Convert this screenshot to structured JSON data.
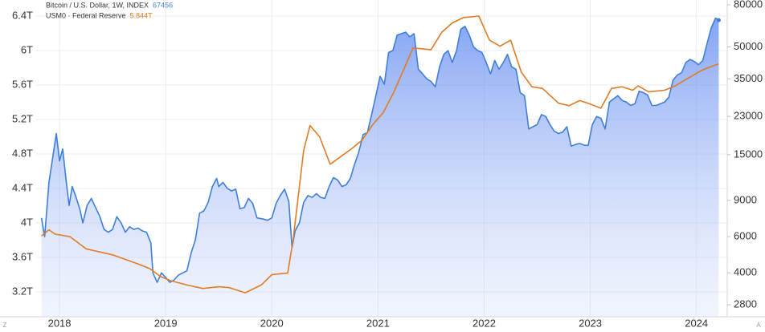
{
  "chart_data": {
    "type": "line",
    "xlim": [
      2017.78,
      2024.29
    ],
    "xticks": [
      2018,
      2019,
      2020,
      2021,
      2022,
      2023,
      2024
    ],
    "ylim": [
      2.912,
      6.586
    ],
    "yticks": [
      {
        "value": 3.2,
        "label": "3.2T"
      },
      {
        "value": 3.6,
        "label": "3.6T"
      },
      {
        "value": 4,
        "label": "4T"
      },
      {
        "value": 4.4,
        "label": "4.4T"
      },
      {
        "value": 4.8,
        "label": "4.8T"
      },
      {
        "value": 5.2,
        "label": "5.2T"
      },
      {
        "value": 5.6,
        "label": "5.6T"
      },
      {
        "value": 6,
        "label": "6T"
      },
      {
        "value": 6.4,
        "label": "6.4T"
      }
    ],
    "y2lim": [
      2450,
      84500
    ],
    "y2scale": "log",
    "y2ticks": [
      2800,
      4000,
      6000,
      9000,
      15000,
      23000,
      35000,
      50000,
      80000
    ],
    "grid": true,
    "scale_buttons": [
      "Z",
      "A"
    ],
    "series": [
      {
        "name": "Bitcoin / U.S. Dollar, 1W, INDEX",
        "last_value": 67456,
        "color": "#3f7fd8",
        "area": true,
        "axis": "y2",
        "x": [
          2017.83,
          2017.86,
          2017.9,
          2017.94,
          2017.97,
          2018,
          2018.03,
          2018.06,
          2018.09,
          2018.12,
          2018.15,
          2018.19,
          2018.22,
          2018.26,
          2018.3,
          2018.34,
          2018.38,
          2018.42,
          2018.46,
          2018.5,
          2018.54,
          2018.58,
          2018.62,
          2018.66,
          2018.7,
          2018.74,
          2018.78,
          2018.82,
          2018.86,
          2018.88,
          2018.92,
          2018.96,
          2019,
          2019.04,
          2019.08,
          2019.12,
          2019.16,
          2019.2,
          2019.24,
          2019.28,
          2019.32,
          2019.36,
          2019.4,
          2019.44,
          2019.48,
          2019.5,
          2019.54,
          2019.58,
          2019.62,
          2019.66,
          2019.7,
          2019.74,
          2019.78,
          2019.82,
          2019.86,
          2019.92,
          2019.96,
          2020,
          2020.04,
          2020.08,
          2020.12,
          2020.16,
          2020.19,
          2020.22,
          2020.26,
          2020.3,
          2020.34,
          2020.38,
          2020.42,
          2020.46,
          2020.5,
          2020.54,
          2020.58,
          2020.62,
          2020.66,
          2020.7,
          2020.74,
          2020.78,
          2020.82,
          2020.86,
          2020.9,
          2020.94,
          2020.98,
          2021.02,
          2021.06,
          2021.1,
          2021.14,
          2021.18,
          2021.22,
          2021.26,
          2021.3,
          2021.34,
          2021.38,
          2021.42,
          2021.46,
          2021.5,
          2021.54,
          2021.58,
          2021.62,
          2021.66,
          2021.7,
          2021.74,
          2021.78,
          2021.82,
          2021.86,
          2021.9,
          2021.94,
          2021.98,
          2022.02,
          2022.06,
          2022.1,
          2022.14,
          2022.18,
          2022.22,
          2022.26,
          2022.3,
          2022.34,
          2022.38,
          2022.42,
          2022.46,
          2022.5,
          2022.54,
          2022.58,
          2022.62,
          2022.66,
          2022.7,
          2022.74,
          2022.78,
          2022.82,
          2022.86,
          2022.9,
          2022.94,
          2022.98,
          2023.02,
          2023.06,
          2023.1,
          2023.14,
          2023.18,
          2023.22,
          2023.26,
          2023.3,
          2023.34,
          2023.38,
          2023.42,
          2023.46,
          2023.5,
          2023.54,
          2023.58,
          2023.62,
          2023.66,
          2023.7,
          2023.74,
          2023.78,
          2023.82,
          2023.86,
          2023.9,
          2023.94,
          2023.98,
          2024.02,
          2024.06,
          2024.1,
          2024.14,
          2024.18,
          2024.21
        ],
        "values": [
          7400,
          6000,
          11000,
          15000,
          19000,
          14000,
          16000,
          11500,
          8500,
          10500,
          9500,
          8200,
          7000,
          8500,
          9200,
          8300,
          7500,
          6500,
          6300,
          6500,
          7500,
          7000,
          6300,
          6700,
          6500,
          6600,
          6400,
          6300,
          5600,
          4000,
          3600,
          4000,
          3800,
          3600,
          3700,
          3900,
          4000,
          4100,
          5000,
          5800,
          7800,
          8000,
          8800,
          10500,
          11500,
          10500,
          11000,
          10300,
          10000,
          10200,
          8200,
          8300,
          9200,
          8700,
          7400,
          7300,
          7200,
          7400,
          8700,
          9500,
          10200,
          8900,
          5300,
          6400,
          7000,
          8800,
          9500,
          9300,
          9700,
          9300,
          9200,
          10500,
          11600,
          11300,
          10500,
          10700,
          11500,
          13500,
          15500,
          18800,
          19200,
          23500,
          29000,
          36000,
          33000,
          47000,
          48000,
          57000,
          58000,
          59000,
          56000,
          58000,
          39000,
          37000,
          35000,
          34000,
          32000,
          40000,
          46000,
          48000,
          42000,
          48000,
          61000,
          63000,
          57000,
          50000,
          48000,
          47000,
          42000,
          37000,
          43000,
          39000,
          42000,
          46000,
          40000,
          39000,
          30000,
          29000,
          20000,
          20500,
          21000,
          23500,
          23000,
          21000,
          19500,
          19000,
          19300,
          20500,
          16500,
          16800,
          17000,
          16700,
          16600,
          21000,
          23000,
          22500,
          20000,
          27000,
          28000,
          29000,
          27500,
          27000,
          26000,
          26500,
          30500,
          30000,
          29200,
          26000,
          26000,
          26500,
          27000,
          28500,
          34500,
          36500,
          37500,
          42000,
          43500,
          42500,
          41000,
          43000,
          52000,
          62000,
          69000,
          67456
        ]
      },
      {
        "name": "USM0 · Federal Reserve",
        "last_value": 5.844,
        "last_value_label": "5.844T",
        "color": "#e07b26",
        "axis": "y",
        "x": [
          2017.83,
          2017.9,
          2017.96,
          2018.1,
          2018.25,
          2018.5,
          2018.75,
          2018.85,
          2018.95,
          2019.05,
          2019.2,
          2019.35,
          2019.5,
          2019.6,
          2019.75,
          2019.9,
          2020,
          2020.15,
          2020.2,
          2020.3,
          2020.36,
          2020.45,
          2020.55,
          2020.65,
          2020.75,
          2020.85,
          2020.95,
          2021.05,
          2021.15,
          2021.25,
          2021.33,
          2021.5,
          2021.6,
          2021.7,
          2021.8,
          2021.95,
          2022.05,
          2022.15,
          2022.25,
          2022.35,
          2022.45,
          2022.55,
          2022.7,
          2022.8,
          2022.9,
          2023,
          2023.1,
          2023.2,
          2023.3,
          2023.4,
          2023.45,
          2023.55,
          2023.7,
          2023.8,
          2023.95,
          2024.05,
          2024.15,
          2024.21
        ],
        "values": [
          3.85,
          3.92,
          3.87,
          3.84,
          3.7,
          3.63,
          3.52,
          3.47,
          3.38,
          3.33,
          3.28,
          3.24,
          3.26,
          3.25,
          3.19,
          3.28,
          3.4,
          3.42,
          3.8,
          4.84,
          5.13,
          5.0,
          4.68,
          4.77,
          4.86,
          4.96,
          5.14,
          5.28,
          5.52,
          5.8,
          6.03,
          6.01,
          6.21,
          6.32,
          6.38,
          6.4,
          6.12,
          6.05,
          6.12,
          5.75,
          5.58,
          5.56,
          5.39,
          5.36,
          5.42,
          5.38,
          5.33,
          5.56,
          5.58,
          5.54,
          5.59,
          5.52,
          5.54,
          5.59,
          5.7,
          5.77,
          5.82,
          5.844
        ]
      }
    ]
  }
}
